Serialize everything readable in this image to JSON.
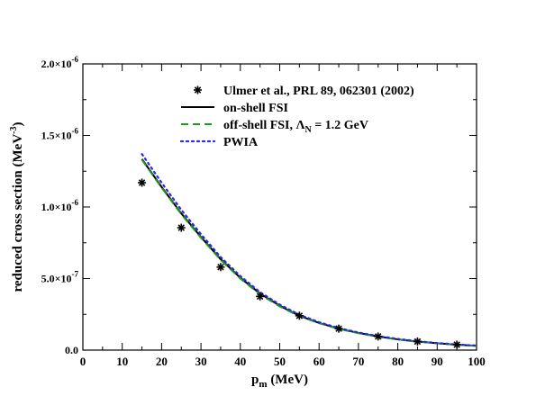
{
  "chart_data": {
    "type": "line",
    "xlabel": {
      "main": "p",
      "sub": "m",
      "rest": " (MeV)"
    },
    "ylabel": {
      "main": "reduced cross section (MeV",
      "sup": "-3",
      "rest": ")"
    },
    "xlim": [
      0,
      100
    ],
    "ylim": [
      0,
      2e-06
    ],
    "x_ticks": [
      0,
      10,
      20,
      30,
      40,
      50,
      60,
      70,
      80,
      90,
      100
    ],
    "x_tick_labels": [
      "0",
      "10",
      "20",
      "30",
      "40",
      "50",
      "60",
      "70",
      "80",
      "90",
      "100"
    ],
    "y_ticks": [
      0,
      5e-07,
      1e-06,
      1.5e-06,
      2e-06
    ],
    "y_tick_labels": [
      {
        "mant": "0.0",
        "exp": ""
      },
      {
        "mant": "5.0×10",
        "exp": "-7"
      },
      {
        "mant": "1.0×10",
        "exp": "-6"
      },
      {
        "mant": "1.5×10",
        "exp": "-6"
      },
      {
        "mant": "2.0×10",
        "exp": "-6"
      }
    ],
    "legend_position": "top-right",
    "legend": [
      {
        "id": "data",
        "label": "Ulmer et al., PRL 89, 062301 (2002)",
        "style": "marker"
      },
      {
        "id": "onshell",
        "label": "on-shell FSI",
        "style": "solid"
      },
      {
        "id": "offshell",
        "label_html": [
          "off-shell FSI, ",
          "Λ",
          "N",
          " = 1.2 GeV"
        ],
        "style": "dashed"
      },
      {
        "id": "pwia",
        "label": "PWIA",
        "style": "dotted"
      }
    ],
    "series": [
      {
        "name": "Ulmer et al., PRL 89, 062301 (2002)",
        "kind": "scatter",
        "marker": "asterisk",
        "color": "#000000",
        "x": [
          15,
          25,
          35,
          45,
          55,
          65,
          75,
          85,
          95
        ],
        "y": [
          1.17e-06,
          8.55e-07,
          5.8e-07,
          3.75e-07,
          2.4e-07,
          1.5e-07,
          9.5e-08,
          6e-08,
          3.8e-08
        ]
      },
      {
        "name": "on-shell FSI",
        "kind": "line",
        "color": "#000000",
        "dash": "solid",
        "x": [
          15,
          20,
          25,
          30,
          35,
          40,
          45,
          50,
          55,
          60,
          65,
          70,
          75,
          80,
          85,
          90,
          95,
          100
        ],
        "y": [
          1.335e-06,
          1.14e-06,
          9.55e-07,
          7.9e-07,
          6.35e-07,
          5.05e-07,
          3.95e-07,
          3.1e-07,
          2.4e-07,
          1.9e-07,
          1.5e-07,
          1.2e-07,
          9.5e-08,
          7.5e-08,
          6e-08,
          4.8e-08,
          3.8e-08,
          3e-08
        ]
      },
      {
        "name": "off-shell FSI, ΛN = 1.2 GeV",
        "kind": "line",
        "color": "#1e9b1e",
        "dash": "dashed",
        "x": [
          15,
          20,
          25,
          30,
          35,
          40,
          45,
          50,
          55,
          60,
          65,
          70,
          75,
          80,
          85,
          90,
          95,
          100
        ],
        "y": [
          1.33e-06,
          1.135e-06,
          9.5e-07,
          7.85e-07,
          6.3e-07,
          5e-07,
          3.9e-07,
          3.05e-07,
          2.37e-07,
          1.88e-07,
          1.48e-07,
          1.18e-07,
          9.3e-08,
          7.4e-08,
          5.9e-08,
          4.7e-08,
          3.7e-08,
          2.95e-08
        ]
      },
      {
        "name": "PWIA",
        "kind": "line",
        "color": "#2a2ae8",
        "dash": "dotted",
        "x": [
          15,
          20,
          25,
          30,
          35,
          40,
          45,
          50,
          55,
          60,
          65,
          70,
          75,
          80,
          85,
          90,
          95,
          100
        ],
        "y": [
          1.37e-06,
          1.17e-06,
          9.8e-07,
          8.1e-07,
          6.5e-07,
          5.17e-07,
          4.05e-07,
          3.18e-07,
          2.47e-07,
          1.95e-07,
          1.54e-07,
          1.23e-07,
          9.8e-08,
          7.8e-08,
          6.2e-08,
          4.95e-08,
          3.95e-08,
          3.15e-08
        ]
      }
    ]
  }
}
